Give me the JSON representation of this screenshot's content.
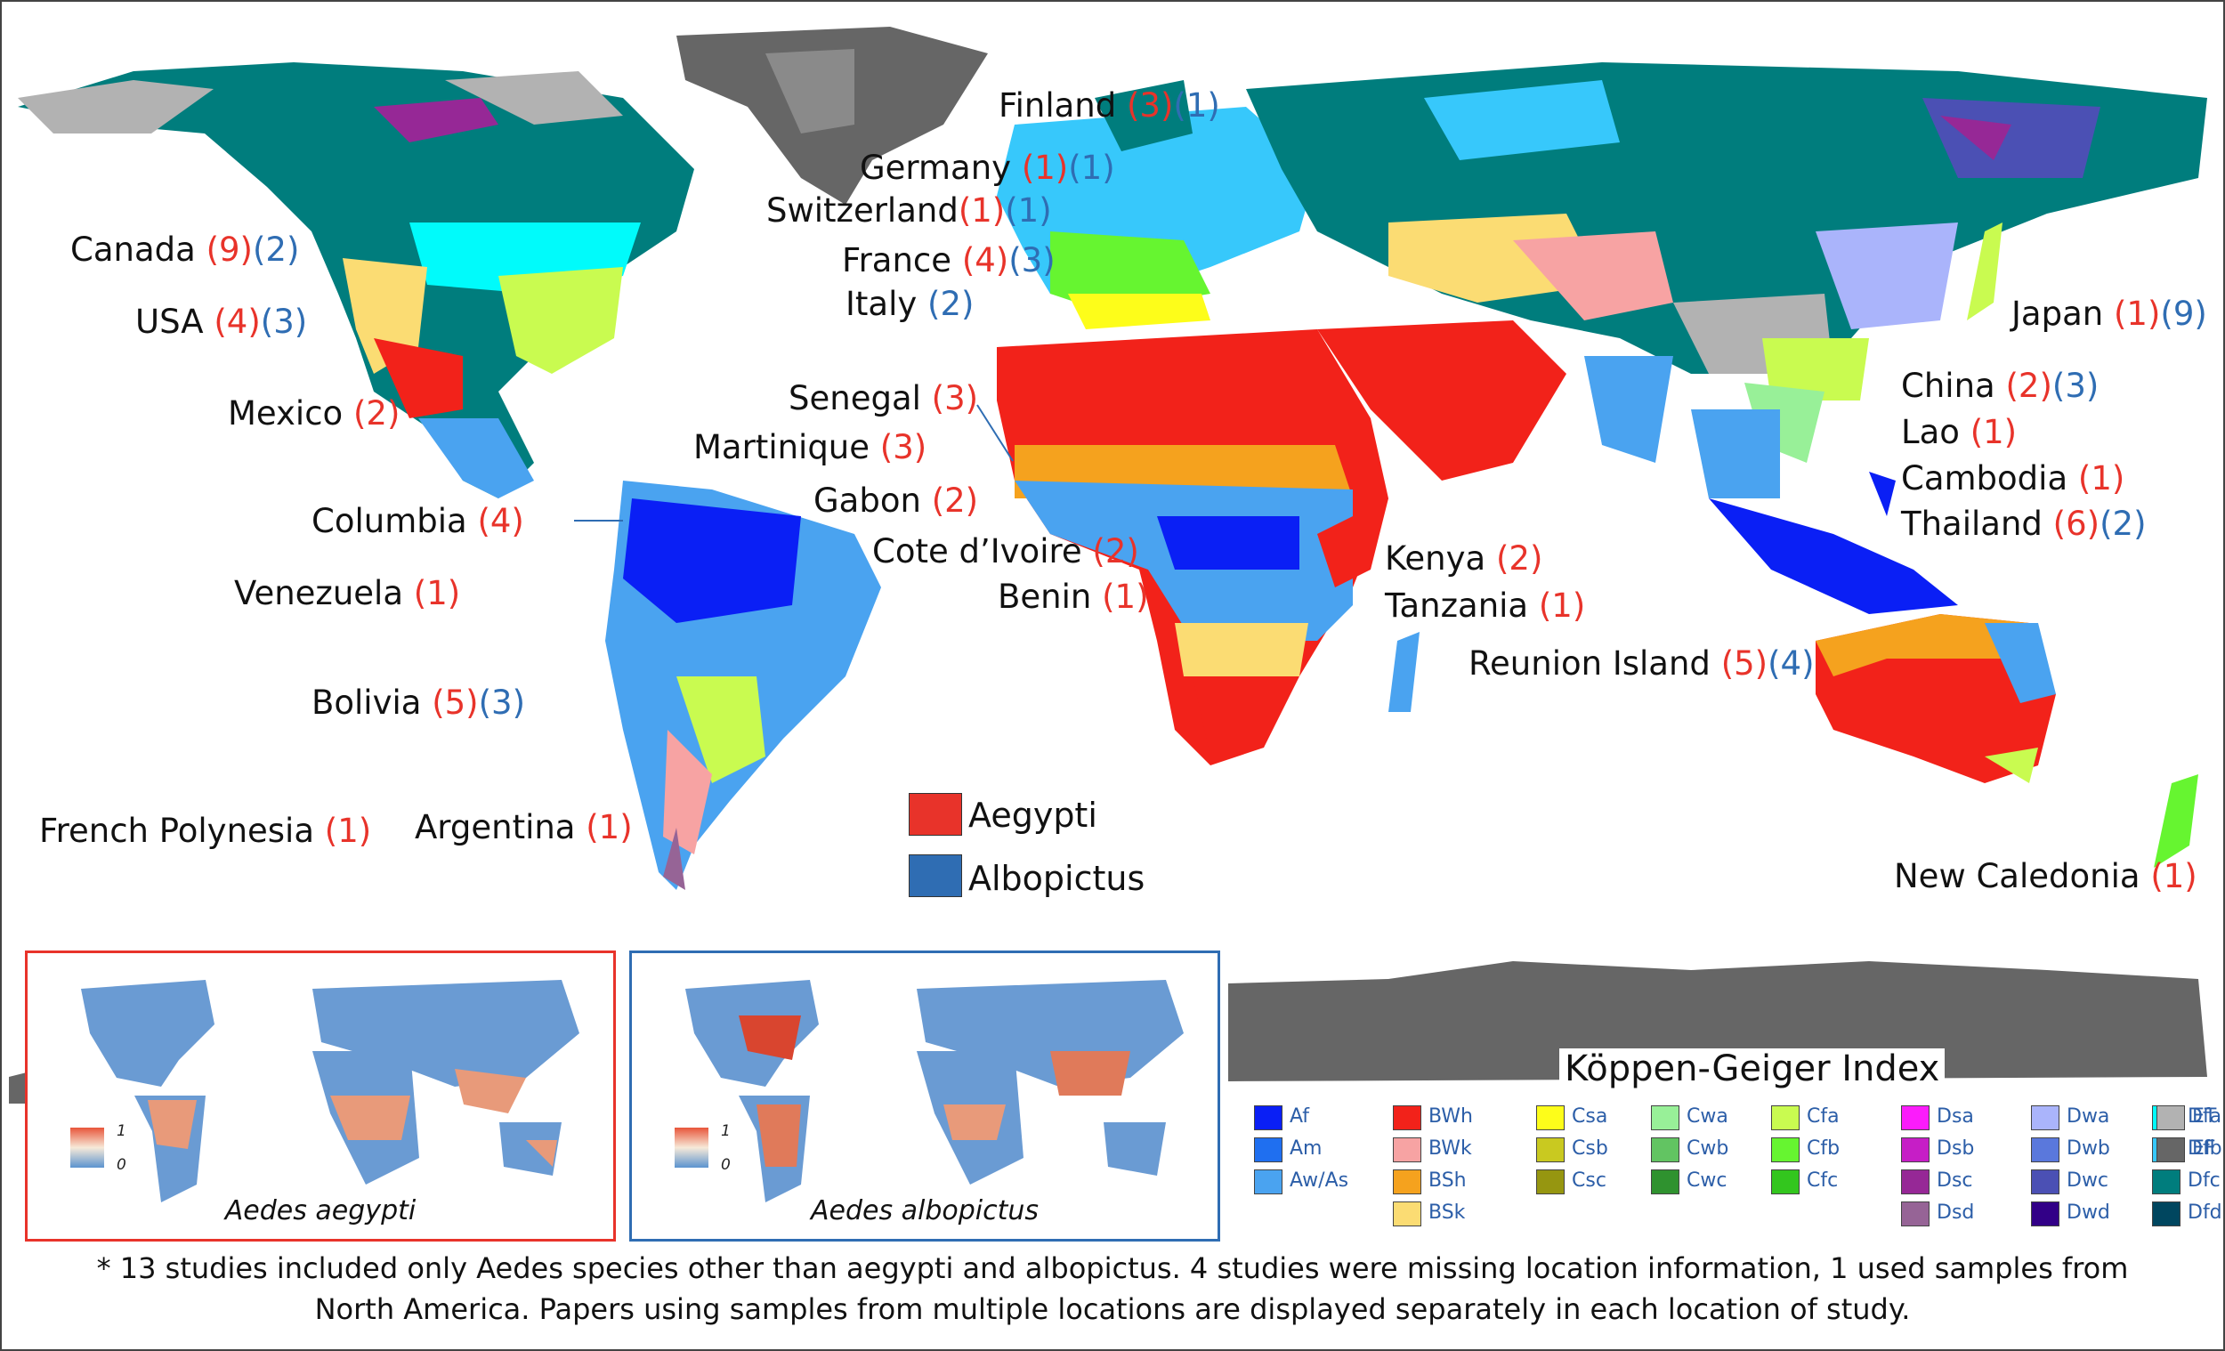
{
  "map_title": "",
  "countries": [
    {
      "name": "Canada",
      "aegypti": "(9)",
      "albopictus": "(2)"
    },
    {
      "name": "USA",
      "aegypti": "(4)",
      "albopictus": "(3)"
    },
    {
      "name": "Mexico",
      "aegypti": "(2)",
      "albopictus": ""
    },
    {
      "name": "Columbia",
      "aegypti": "(4)",
      "albopictus": ""
    },
    {
      "name": "Venezuela",
      "aegypti": "(1)",
      "albopictus": ""
    },
    {
      "name": "Bolivia",
      "aegypti": "(5)",
      "albopictus": "(3)"
    },
    {
      "name": "French Polynesia",
      "aegypti": "(1)",
      "albopictus": ""
    },
    {
      "name": "Argentina",
      "aegypti": "(1)",
      "albopictus": ""
    },
    {
      "name": "Finland",
      "aegypti": "(3)",
      "albopictus": "(1)"
    },
    {
      "name": "Germany",
      "aegypti": "(1)",
      "albopictus": "(1)"
    },
    {
      "name": "Switzerland",
      "aegypti": "(1)",
      "albopictus": "(1)"
    },
    {
      "name": "France",
      "aegypti": "(4)",
      "albopictus": "(3)"
    },
    {
      "name": "Italy",
      "aegypti": "",
      "albopictus": "(2)"
    },
    {
      "name": "Senegal",
      "aegypti": "(3)",
      "albopictus": ""
    },
    {
      "name": "Martinique",
      "aegypti": "(3)",
      "albopictus": ""
    },
    {
      "name": "Gabon",
      "aegypti": "(2)",
      "albopictus": ""
    },
    {
      "name": "Cote d’Ivoire",
      "aegypti": "(2)",
      "albopictus": ""
    },
    {
      "name": "Benin",
      "aegypti": "(1)",
      "albopictus": ""
    },
    {
      "name": "Kenya",
      "aegypti": "(2)",
      "albopictus": ""
    },
    {
      "name": "Tanzania",
      "aegypti": "(1)",
      "albopictus": ""
    },
    {
      "name": "Reunion Island",
      "aegypti": "(5)",
      "albopictus": "(4)"
    },
    {
      "name": "Japan",
      "aegypti": "(1)",
      "albopictus": "(9)"
    },
    {
      "name": "China",
      "aegypti": "(2)",
      "albopictus": "(3)"
    },
    {
      "name": "Lao",
      "aegypti": "(1)",
      "albopictus": ""
    },
    {
      "name": "Cambodia",
      "aegypti": "(1)",
      "albopictus": ""
    },
    {
      "name": "Thailand",
      "aegypti": "(6)",
      "albopictus": "(2)"
    },
    {
      "name": "New Caledonia",
      "aegypti": "(1)",
      "albopictus": ""
    }
  ],
  "species_legend": [
    {
      "label": "Aegypti",
      "color": "#e8332a"
    },
    {
      "label": "Albopictus",
      "color": "#2f6db3"
    }
  ],
  "insets": [
    {
      "caption": "Aedes aegypti",
      "border_color": "#e8332a",
      "scale_max": "1",
      "scale_min": "0"
    },
    {
      "caption": "Aedes albopictus",
      "border_color": "#2f6db3",
      "scale_max": "1",
      "scale_min": "0"
    }
  ],
  "koppen": {
    "title": "Köppen-Geiger Index",
    "columns": [
      [
        {
          "code": "Af",
          "color": "#0a1ff5"
        },
        {
          "code": "Am",
          "color": "#1f6ff0"
        },
        {
          "code": "Aw/As",
          "color": "#4aa3f0"
        }
      ],
      [
        {
          "code": "BWh",
          "color": "#f2221a"
        },
        {
          "code": "BWk",
          "color": "#f7a3a3"
        },
        {
          "code": "BSh",
          "color": "#f5a21e"
        },
        {
          "code": "BSk",
          "color": "#fbdc73"
        }
      ],
      [
        {
          "code": "Csa",
          "color": "#fdfd1a"
        },
        {
          "code": "Csb",
          "color": "#c9c920"
        },
        {
          "code": "Csc",
          "color": "#969610"
        }
      ],
      [
        {
          "code": "Cwa",
          "color": "#98f098"
        },
        {
          "code": "Cwb",
          "color": "#62c462"
        },
        {
          "code": "Cwc",
          "color": "#2f922f"
        }
      ],
      [
        {
          "code": "Cfa",
          "color": "#c9fb50"
        },
        {
          "code": "Cfb",
          "color": "#66f530"
        },
        {
          "code": "Cfc",
          "color": "#33c61e"
        }
      ],
      [
        {
          "code": "Dsa",
          "color": "#fb1cfb"
        },
        {
          "code": "Dsb",
          "color": "#c61ec6"
        },
        {
          "code": "Dsc",
          "color": "#962896"
        },
        {
          "code": "Dsd",
          "color": "#966496"
        }
      ],
      [
        {
          "code": "Dwa",
          "color": "#aab4fb"
        },
        {
          "code": "Dwb",
          "color": "#5a78dc"
        },
        {
          "code": "Dwc",
          "color": "#4b50b4"
        },
        {
          "code": "Dwd",
          "color": "#320087"
        }
      ],
      [
        {
          "code": "Dfa",
          "color": "#00fbfb"
        },
        {
          "code": "Dfb",
          "color": "#37c8fb"
        },
        {
          "code": "Dfc",
          "color": "#007d7d"
        },
        {
          "code": "Dfd",
          "color": "#00465f"
        }
      ],
      [
        {
          "code": "ET",
          "color": "#b2b2b2"
        },
        {
          "code": "EF",
          "color": "#666666"
        }
      ]
    ]
  },
  "footnote_lines": [
    "* 13 studies included only Aedes species other than aegypti and albopictus. 4 studies were missing location information, 1 used samples from",
    "North America.  Papers using samples from multiple locations are displayed separately in each location of study."
  ]
}
